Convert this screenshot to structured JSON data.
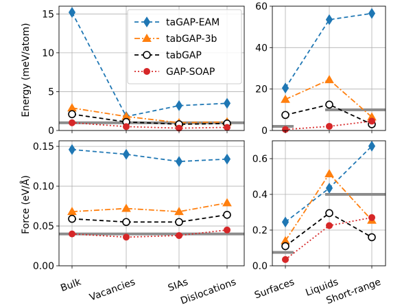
{
  "chart_data": {
    "type": "line",
    "x_left": [
      "Bulk",
      "Vacancies",
      "SIAs",
      "Dislocations"
    ],
    "x_right": [
      "Surfaces",
      "Liquids",
      "Short-range"
    ],
    "ylabel_energy": "Energy (meV/atom)",
    "ylabel_force": "Force (eV/Å)",
    "legend_placement": "upper-center of top-left panel",
    "series": [
      {
        "name": "taGAP-EAM",
        "color": "#1f77b4",
        "marker": "diamond",
        "linestyle": "dashed"
      },
      {
        "name": "tabGAP-3b",
        "color": "#ff7f0e",
        "marker": "triangle",
        "linestyle": "dashdot"
      },
      {
        "name": "tabGAP",
        "color": "#000000",
        "marker": "open-circle",
        "linestyle": "dashed"
      },
      {
        "name": "GAP-SOAP",
        "color": "#d62728",
        "marker": "filled-circle",
        "linestyle": "dotted"
      }
    ],
    "panels": [
      {
        "id": "energy-left",
        "ylim": [
          0,
          16
        ],
        "yticks": [
          0,
          5,
          10,
          15
        ],
        "ytick_labels": [
          "0",
          "5",
          "10",
          "15"
        ],
        "reference_line": 1.0,
        "values": {
          "taGAP-EAM": [
            15.2,
            1.8,
            3.2,
            3.5
          ],
          "tabGAP-3b": [
            2.9,
            1.8,
            1.0,
            1.1
          ],
          "tabGAP": [
            2.1,
            1.1,
            0.8,
            0.9
          ],
          "GAP-SOAP": [
            1.0,
            0.5,
            0.3,
            0.4
          ]
        }
      },
      {
        "id": "energy-right",
        "ylim": [
          0,
          60
        ],
        "yticks": [
          0,
          20,
          40,
          60
        ],
        "ytick_labels": [
          "0",
          "20",
          "40",
          "60"
        ],
        "reference_line": 10.0,
        "reference_line_left": 2.0,
        "values": {
          "taGAP-EAM": [
            20.5,
            53.5,
            56.5
          ],
          "tabGAP-3b": [
            15.0,
            24.5,
            6.5
          ],
          "tabGAP": [
            7.5,
            12.5,
            3.0
          ],
          "GAP-SOAP": [
            0.5,
            2.0,
            4.5
          ]
        }
      },
      {
        "id": "force-left",
        "ylim": [
          0,
          0.157
        ],
        "yticks": [
          0,
          0.05,
          0.1,
          0.15
        ],
        "ytick_labels": [
          "0.00",
          "0.05",
          "0.10",
          "0.15"
        ],
        "reference_line": 0.04,
        "values": {
          "taGAP-EAM": [
            0.146,
            0.14,
            0.131,
            0.134
          ],
          "tabGAP-3b": [
            0.068,
            0.072,
            0.068,
            0.079
          ],
          "tabGAP": [
            0.059,
            0.055,
            0.055,
            0.064
          ],
          "GAP-SOAP": [
            0.04,
            0.036,
            0.038,
            0.045
          ]
        }
      },
      {
        "id": "force-right",
        "ylim": [
          0,
          0.7
        ],
        "yticks": [
          0,
          0.2,
          0.4,
          0.6
        ],
        "ytick_labels": [
          "0.0",
          "0.2",
          "0.4",
          "0.6"
        ],
        "reference_line": 0.4,
        "reference_line_left": 0.075,
        "values": {
          "taGAP-EAM": [
            0.245,
            0.435,
            0.67
          ],
          "tabGAP-3b": [
            0.14,
            0.515,
            0.255
          ],
          "tabGAP": [
            0.11,
            0.295,
            0.16
          ],
          "GAP-SOAP": [
            0.035,
            0.225,
            0.27
          ]
        }
      }
    ]
  }
}
